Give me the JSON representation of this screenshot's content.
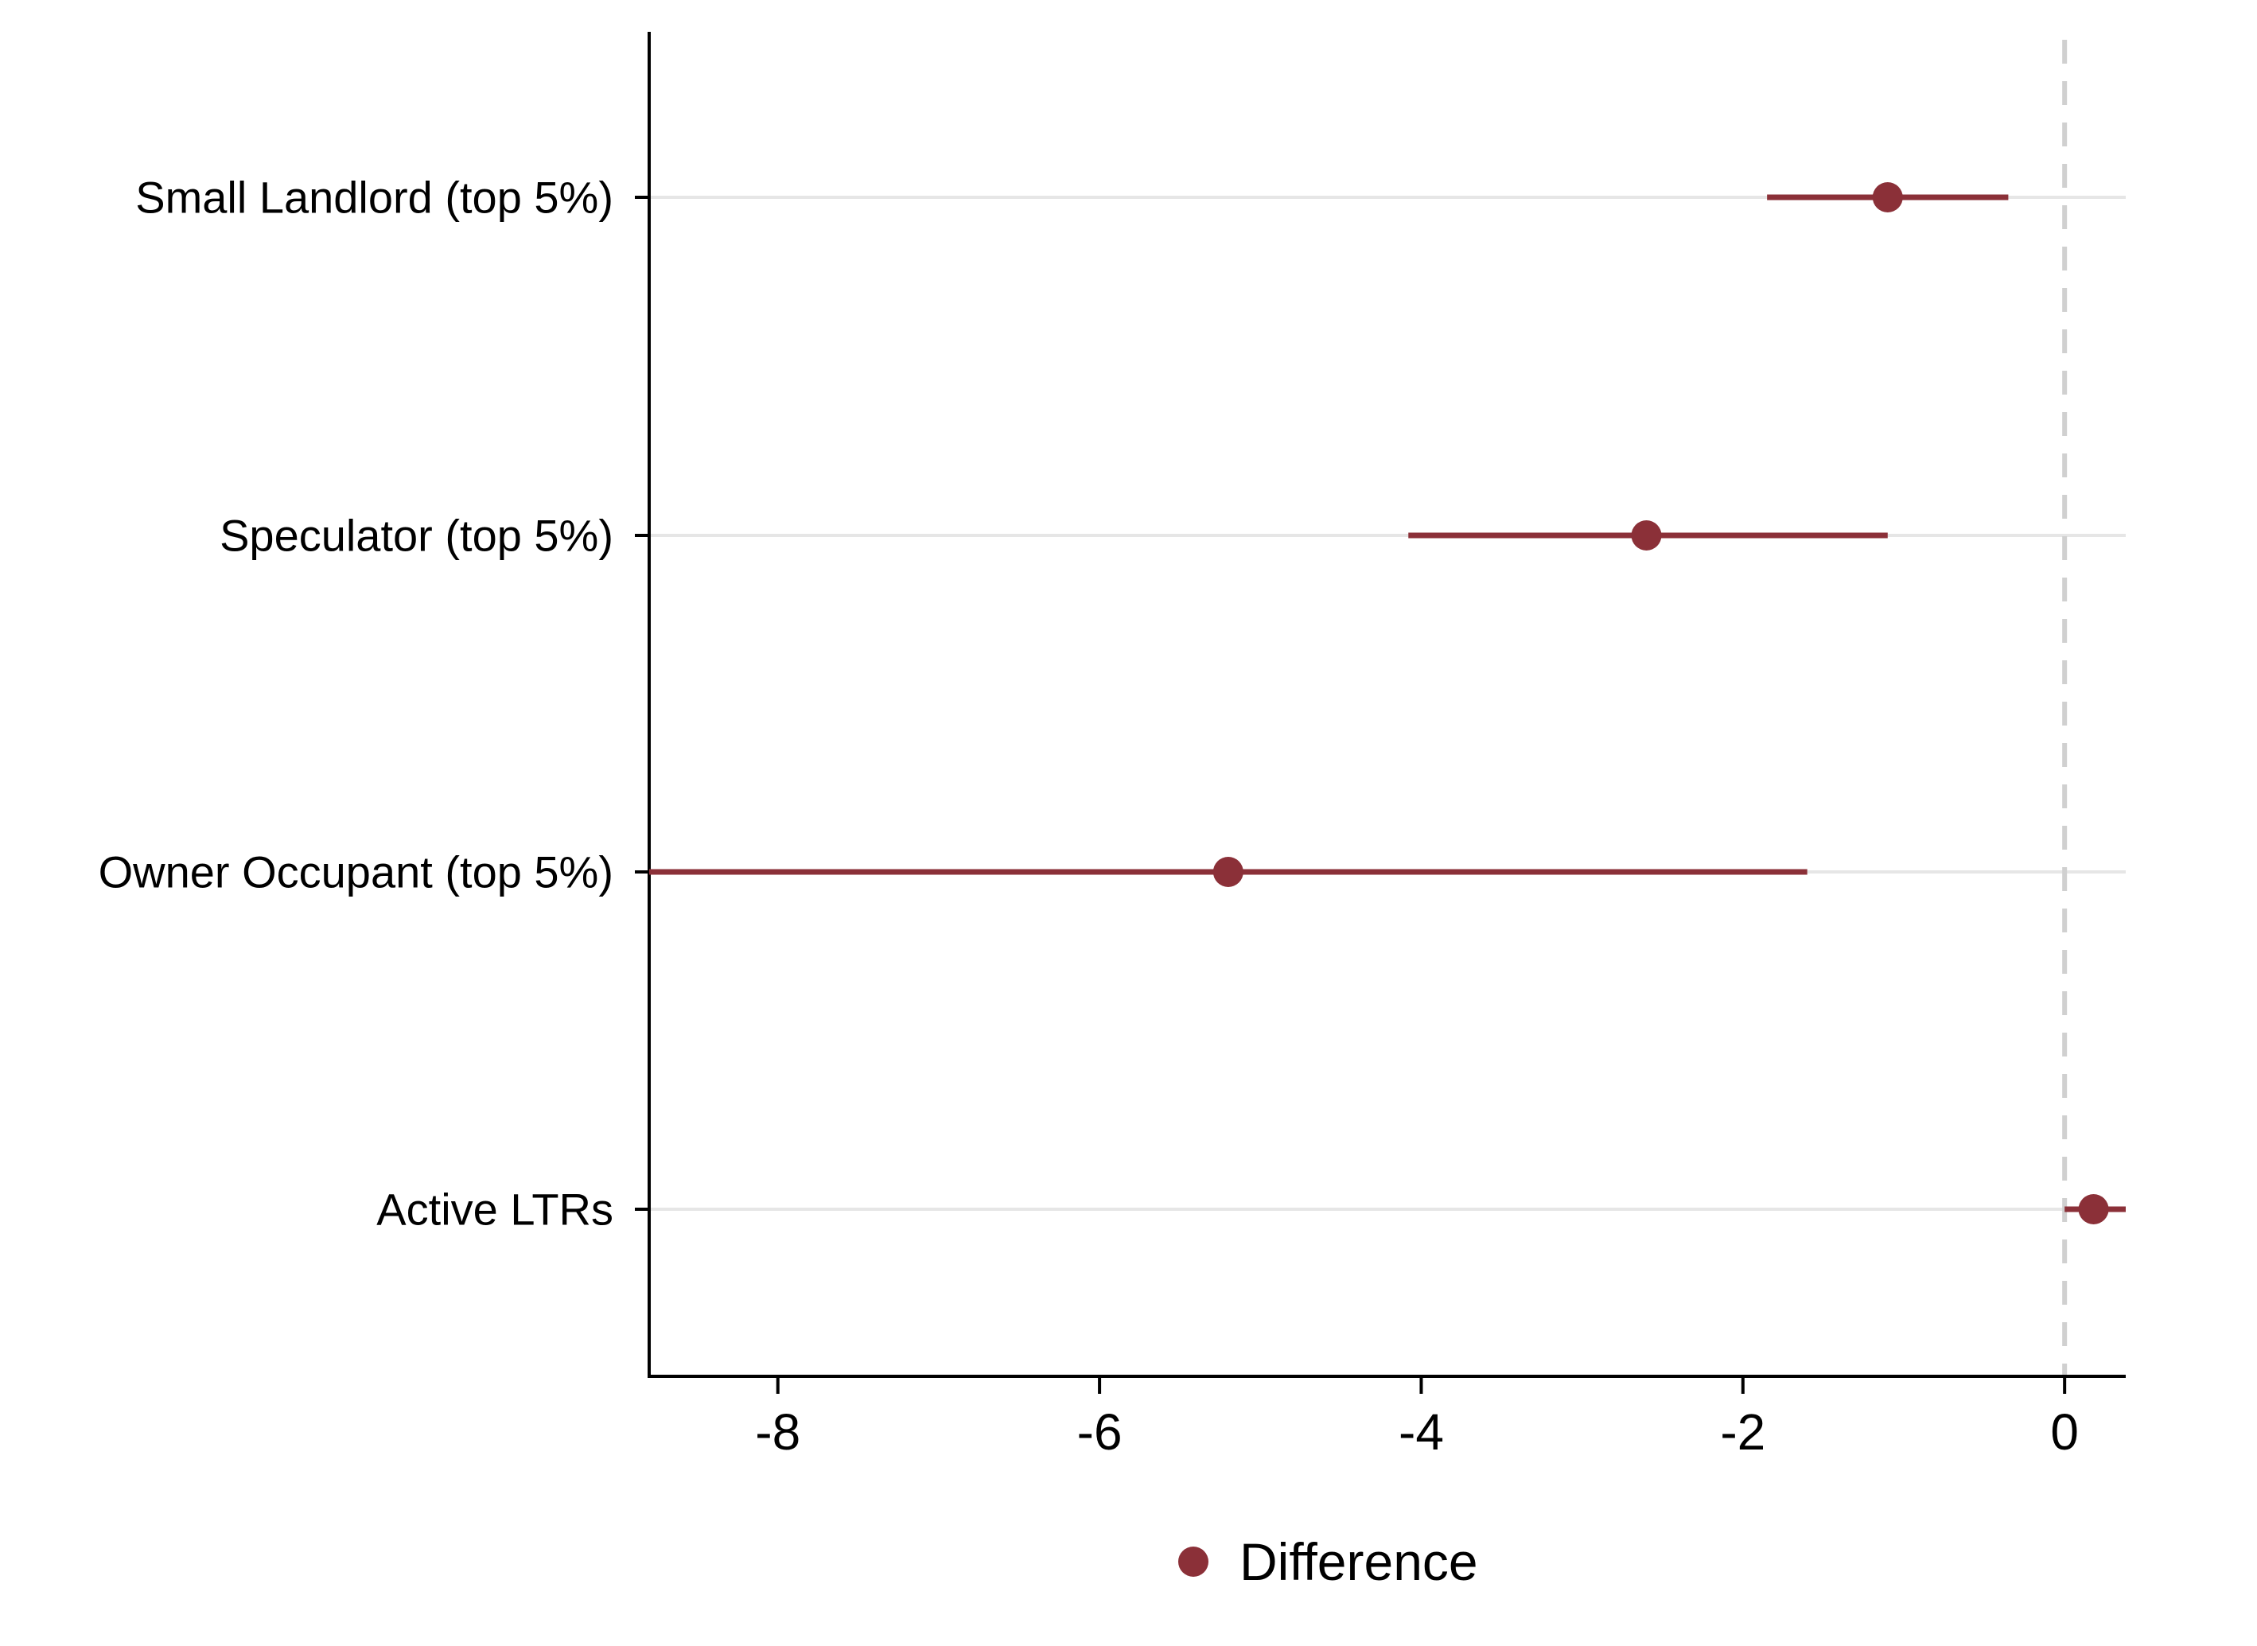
{
  "chart_data": {
    "type": "coefficient-plot",
    "orientation": "horizontal",
    "title": "",
    "xlabel": "",
    "ylabel": "",
    "xlim": [
      -8.8,
      0.38
    ],
    "xticks": [
      -8,
      -6,
      -4,
      -2,
      0
    ],
    "xtick_labels": [
      "-8",
      "-6",
      "-4",
      "-2",
      "0"
    ],
    "reference_line": {
      "x": 0,
      "style": "dashed",
      "color": "#d0d0d0"
    },
    "grid": "horizontal",
    "legend": {
      "position": "bottom-center",
      "entries": [
        "Difference"
      ]
    },
    "series": [
      {
        "name": "Difference",
        "color": "#8b3038",
        "points": [
          {
            "label": "Small Landlord (top 5%)",
            "estimate": -1.1,
            "ci_low": -1.85,
            "ci_high": -0.35
          },
          {
            "label": "Speculator (top 5%)",
            "estimate": -2.6,
            "ci_low": -4.08,
            "ci_high": -1.1
          },
          {
            "label": "Owner Occupant (top 5%)",
            "estimate": -5.2,
            "ci_low": -8.8,
            "ci_high": -1.6
          },
          {
            "label": "Active LTRs",
            "estimate": 0.18,
            "ci_low": 0.0,
            "ci_high": 0.38
          }
        ]
      }
    ]
  }
}
